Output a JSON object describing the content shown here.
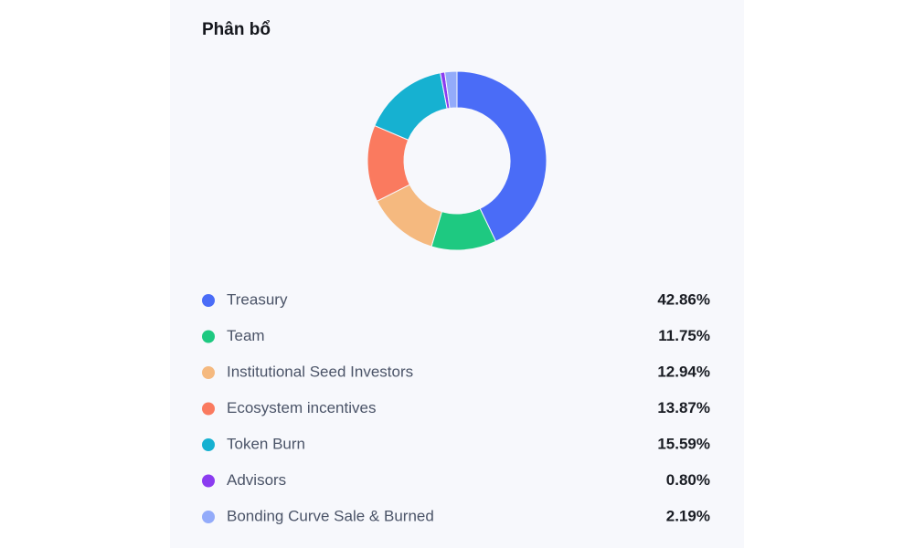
{
  "chart_data": {
    "type": "pie",
    "donut": true,
    "title": "Phân bổ",
    "categories": [
      "Treasury",
      "Team",
      "Institutional Seed Investors",
      "Ecosystem incentives",
      "Token Burn",
      "Advisors",
      "Bonding Curve Sale & Burned"
    ],
    "values": [
      42.86,
      11.75,
      12.94,
      13.87,
      15.59,
      0.8,
      2.19
    ],
    "value_labels": [
      "42.86%",
      "11.75%",
      "12.94%",
      "13.87%",
      "15.59%",
      "0.80%",
      "2.19%"
    ],
    "colors": [
      "#4a6cf7",
      "#1ec981",
      "#f5b97f",
      "#fa7a5f",
      "#16b1d1",
      "#8b3cf0",
      "#93abfa"
    ]
  }
}
